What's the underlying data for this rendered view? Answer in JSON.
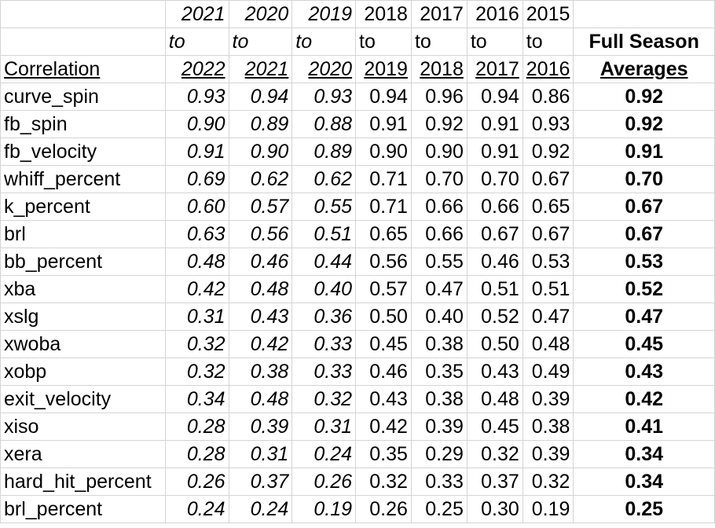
{
  "header": {
    "row1": [
      "2021",
      "2020",
      "2019",
      "2018",
      "2017",
      "2016",
      "2015"
    ],
    "row2": [
      "to",
      "to",
      "to",
      "to",
      "to",
      "to",
      "to"
    ],
    "row3": [
      "2022",
      "2021",
      "2020",
      "2019",
      "2018",
      "2017",
      "2016"
    ],
    "corner_label": "Correlation",
    "avg_line1": "Full Season",
    "avg_line2": "Averages"
  },
  "rows": [
    {
      "metric": "curve_spin",
      "values": [
        "0.93",
        "0.94",
        "0.93",
        "0.94",
        "0.96",
        "0.94",
        "0.86"
      ],
      "avg": "0.92"
    },
    {
      "metric": "fb_spin",
      "values": [
        "0.90",
        "0.89",
        "0.88",
        "0.91",
        "0.92",
        "0.91",
        "0.93"
      ],
      "avg": "0.92"
    },
    {
      "metric": "fb_velocity",
      "values": [
        "0.91",
        "0.90",
        "0.89",
        "0.90",
        "0.90",
        "0.91",
        "0.92"
      ],
      "avg": "0.91"
    },
    {
      "metric": "whiff_percent",
      "values": [
        "0.69",
        "0.62",
        "0.62",
        "0.71",
        "0.70",
        "0.70",
        "0.67"
      ],
      "avg": "0.70"
    },
    {
      "metric": "k_percent",
      "values": [
        "0.60",
        "0.57",
        "0.55",
        "0.71",
        "0.66",
        "0.66",
        "0.65"
      ],
      "avg": "0.67"
    },
    {
      "metric": "brl",
      "values": [
        "0.63",
        "0.56",
        "0.51",
        "0.65",
        "0.66",
        "0.67",
        "0.67"
      ],
      "avg": "0.67"
    },
    {
      "metric": "bb_percent",
      "values": [
        "0.48",
        "0.46",
        "0.44",
        "0.56",
        "0.55",
        "0.46",
        "0.53"
      ],
      "avg": "0.53"
    },
    {
      "metric": "xba",
      "values": [
        "0.42",
        "0.48",
        "0.40",
        "0.57",
        "0.47",
        "0.51",
        "0.51"
      ],
      "avg": "0.52"
    },
    {
      "metric": "xslg",
      "values": [
        "0.31",
        "0.43",
        "0.36",
        "0.50",
        "0.40",
        "0.52",
        "0.47"
      ],
      "avg": "0.47"
    },
    {
      "metric": "xwoba",
      "values": [
        "0.32",
        "0.42",
        "0.33",
        "0.45",
        "0.38",
        "0.50",
        "0.48"
      ],
      "avg": "0.45"
    },
    {
      "metric": "xobp",
      "values": [
        "0.32",
        "0.38",
        "0.33",
        "0.46",
        "0.35",
        "0.43",
        "0.49"
      ],
      "avg": "0.43"
    },
    {
      "metric": "exit_velocity",
      "values": [
        "0.34",
        "0.48",
        "0.32",
        "0.43",
        "0.38",
        "0.48",
        "0.39"
      ],
      "avg": "0.42"
    },
    {
      "metric": "xiso",
      "values": [
        "0.28",
        "0.39",
        "0.31",
        "0.42",
        "0.39",
        "0.45",
        "0.38"
      ],
      "avg": "0.41"
    },
    {
      "metric": "xera",
      "values": [
        "0.28",
        "0.31",
        "0.24",
        "0.35",
        "0.29",
        "0.32",
        "0.39"
      ],
      "avg": "0.34"
    },
    {
      "metric": "hard_hit_percent",
      "values": [
        "0.26",
        "0.37",
        "0.26",
        "0.32",
        "0.33",
        "0.37",
        "0.32"
      ],
      "avg": "0.34"
    },
    {
      "metric": "brl_percent",
      "values": [
        "0.24",
        "0.24",
        "0.19",
        "0.26",
        "0.25",
        "0.30",
        "0.19"
      ],
      "avg": "0.25"
    }
  ]
}
